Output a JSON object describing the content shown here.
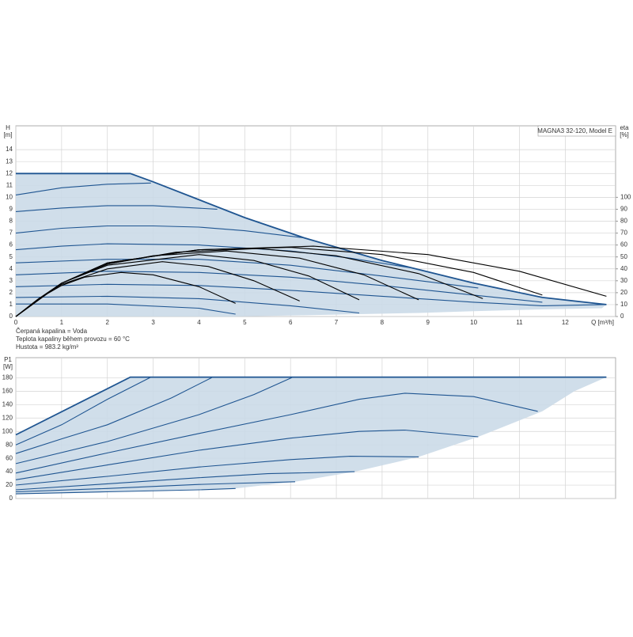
{
  "chart_data": [
    {
      "type": "line",
      "title": "MAGNA3 32-120, Model E",
      "annotations": [
        "Čerpaná kapalina = Voda",
        "Teplota kapaliny během provozu = 60 °C",
        "Hustota = 983.2 kg/m³"
      ],
      "x_label": "Q [m³/h]",
      "y_label": "H",
      "y_unit": "[m]",
      "y2_label": "eta",
      "y2_unit": "[%]",
      "xlim": [
        0,
        13.1
      ],
      "xticks": [
        0,
        1,
        2,
        3,
        4,
        5,
        6,
        7,
        8,
        9,
        10,
        11,
        12
      ],
      "ylim": [
        0,
        16
      ],
      "yticks": [
        0,
        1,
        2,
        3,
        4,
        5,
        6,
        7,
        8,
        9,
        10,
        11,
        12,
        13,
        14
      ],
      "y2lim": [
        0,
        160
      ],
      "y2ticks": [
        0,
        10,
        20,
        30,
        40,
        50,
        60,
        70,
        80,
        90,
        100
      ],
      "grid": true,
      "area": {
        "color": "#c9d9e7",
        "x": [
          0,
          2.5,
          3,
          4,
          5,
          6.3,
          8,
          10,
          11.5,
          12.9,
          12.8,
          11.5,
          10,
          8.8,
          7.5,
          6.2,
          4.8,
          0
        ],
        "values": [
          12,
          12,
          11.3,
          9.8,
          8.3,
          6.6,
          4.7,
          2.8,
          1.6,
          1.0,
          0.7,
          0.6,
          0.45,
          0.3,
          0.2,
          0.1,
          0,
          0
        ]
      },
      "series": [
        {
          "color": "#1f5591",
          "x": [
            0,
            2.5,
            3,
            4,
            5,
            6.3,
            8,
            10,
            11.5,
            12.9
          ],
          "values": [
            12,
            12,
            11.3,
            9.8,
            8.3,
            6.6,
            4.7,
            2.8,
            1.6,
            1.0
          ]
        },
        {
          "color": "#1f5591",
          "x": [
            0,
            1,
            2,
            2.95
          ],
          "values": [
            10.2,
            10.8,
            11.1,
            11.2
          ]
        },
        {
          "color": "#1f5591",
          "x": [
            0,
            1,
            2,
            3,
            4.4
          ],
          "values": [
            8.8,
            9.1,
            9.3,
            9.3,
            9.0
          ]
        },
        {
          "color": "#1f5591",
          "x": [
            0,
            1,
            2,
            3,
            4,
            5,
            6.3
          ],
          "values": [
            7.0,
            7.4,
            7.6,
            7.6,
            7.5,
            7.2,
            6.6
          ]
        },
        {
          "color": "#1f5591",
          "x": [
            0,
            1,
            2,
            4,
            6,
            7.3,
            8.6
          ],
          "values": [
            5.6,
            5.9,
            6.1,
            6.0,
            5.5,
            4.9,
            4.1
          ]
        },
        {
          "color": "#1f5591",
          "x": [
            0,
            2,
            4,
            6,
            8,
            10.1
          ],
          "values": [
            4.5,
            4.8,
            4.8,
            4.3,
            3.4,
            2.4
          ]
        },
        {
          "color": "#1f5591",
          "x": [
            0,
            2,
            4,
            6,
            8,
            10,
            11.5
          ],
          "values": [
            3.5,
            3.8,
            3.7,
            3.3,
            2.6,
            1.8,
            1.2
          ]
        },
        {
          "color": "#1f5591",
          "x": [
            0,
            2,
            4,
            6,
            8,
            10,
            11.5,
            12.9
          ],
          "values": [
            2.5,
            2.7,
            2.6,
            2.2,
            1.7,
            1.2,
            0.9,
            1.0
          ]
        },
        {
          "color": "#1f5591",
          "x": [
            0,
            2,
            4,
            6,
            7.5
          ],
          "values": [
            1.6,
            1.7,
            1.5,
            0.9,
            0.3
          ]
        },
        {
          "color": "#1f5591",
          "x": [
            0,
            2,
            4,
            4.8
          ],
          "values": [
            1.05,
            1.05,
            0.7,
            0.2
          ]
        },
        {
          "color": "#000000",
          "axis": "y2",
          "x": [
            0,
            0.5,
            1,
            1.5,
            2.3,
            3,
            4,
            4.8
          ],
          "values": [
            0,
            15,
            26,
            33,
            37,
            35,
            25,
            11
          ]
        },
        {
          "color": "#000000",
          "axis": "y2",
          "x": [
            0,
            0.5,
            1,
            2,
            3.2,
            4.2,
            5.2,
            6.2
          ],
          "values": [
            0,
            15,
            27,
            40,
            46,
            42,
            30,
            13
          ]
        },
        {
          "color": "#000000",
          "axis": "y2",
          "x": [
            0,
            0.5,
            1,
            2,
            4,
            5.2,
            6.4,
            7.5
          ],
          "values": [
            0,
            15,
            28,
            43,
            52,
            47,
            34,
            14
          ]
        },
        {
          "color": "#000000",
          "axis": "y2",
          "x": [
            0,
            1,
            2,
            3,
            4.6,
            6.2,
            7.6,
            8.8
          ],
          "values": [
            0,
            28,
            44,
            51,
            55,
            49,
            35,
            14
          ]
        },
        {
          "color": "#000000",
          "axis": "y2",
          "x": [
            0,
            1,
            2,
            3.5,
            5.3,
            7,
            8.8,
            10.2
          ],
          "values": [
            0,
            28,
            44,
            54,
            57,
            51,
            36,
            15
          ]
        },
        {
          "color": "#000000",
          "axis": "y2",
          "x": [
            0,
            1,
            2,
            4,
            6,
            8,
            10,
            11.5
          ],
          "values": [
            0,
            28,
            45,
            56,
            58,
            52,
            37,
            18
          ]
        },
        {
          "color": "#000000",
          "axis": "y2",
          "x": [
            0,
            1,
            2,
            4,
            6.5,
            9,
            11,
            12.9
          ],
          "values": [
            0,
            28,
            45,
            56,
            59,
            52,
            38,
            17
          ]
        }
      ]
    },
    {
      "type": "line",
      "y_label": "P1",
      "y_unit": "[W]",
      "xlim": [
        0,
        13.1
      ],
      "ylim": [
        0,
        210
      ],
      "yticks": [
        0,
        20,
        40,
        60,
        80,
        100,
        120,
        140,
        160,
        180
      ],
      "grid": true,
      "area": {
        "color": "#c9d9e7",
        "x": [
          0,
          2.5,
          12.9,
          12.2,
          11.5,
          10.1,
          8.8,
          7.4,
          6.1,
          4.8,
          0
        ],
        "values": [
          95,
          181,
          181,
          160,
          130,
          92,
          62,
          40,
          25,
          15,
          7
        ]
      },
      "series": [
        {
          "color": "#1f5591",
          "x": [
            0,
            2.5,
            12.9
          ],
          "values": [
            95,
            181,
            181
          ]
        },
        {
          "color": "#1f5591",
          "x": [
            0,
            1,
            2,
            2.95
          ],
          "values": [
            80,
            110,
            148,
            181
          ]
        },
        {
          "color": "#1f5591",
          "x": [
            0,
            1,
            2,
            3.4,
            4.3
          ],
          "values": [
            67,
            89,
            110,
            150,
            181
          ]
        },
        {
          "color": "#1f5591",
          "x": [
            0,
            2,
            4,
            5.2,
            6.05
          ],
          "values": [
            52,
            85,
            125,
            155,
            181
          ]
        },
        {
          "color": "#1f5591",
          "x": [
            0,
            2,
            4,
            6,
            7.5,
            8.5,
            10,
            11.4
          ],
          "values": [
            38,
            68,
            97,
            125,
            148,
            157,
            152,
            130
          ]
        },
        {
          "color": "#1f5591",
          "x": [
            0,
            2,
            4,
            6,
            7.5,
            8.5,
            10.1
          ],
          "values": [
            28,
            50,
            72,
            90,
            100,
            102,
            92
          ]
        },
        {
          "color": "#1f5591",
          "x": [
            0,
            2,
            4,
            6,
            7.3,
            8.8
          ],
          "values": [
            20,
            33,
            47,
            58,
            63,
            62
          ]
        },
        {
          "color": "#1f5591",
          "x": [
            0,
            2,
            4,
            5.5,
            7.4
          ],
          "values": [
            13,
            22,
            31,
            37,
            40
          ]
        },
        {
          "color": "#1f5591",
          "x": [
            0,
            2,
            4,
            5,
            6.1
          ],
          "values": [
            10,
            15,
            21,
            23,
            25
          ]
        },
        {
          "color": "#1f5591",
          "x": [
            0,
            2,
            4,
            4.8
          ],
          "values": [
            7,
            10,
            13,
            15
          ]
        }
      ]
    }
  ]
}
